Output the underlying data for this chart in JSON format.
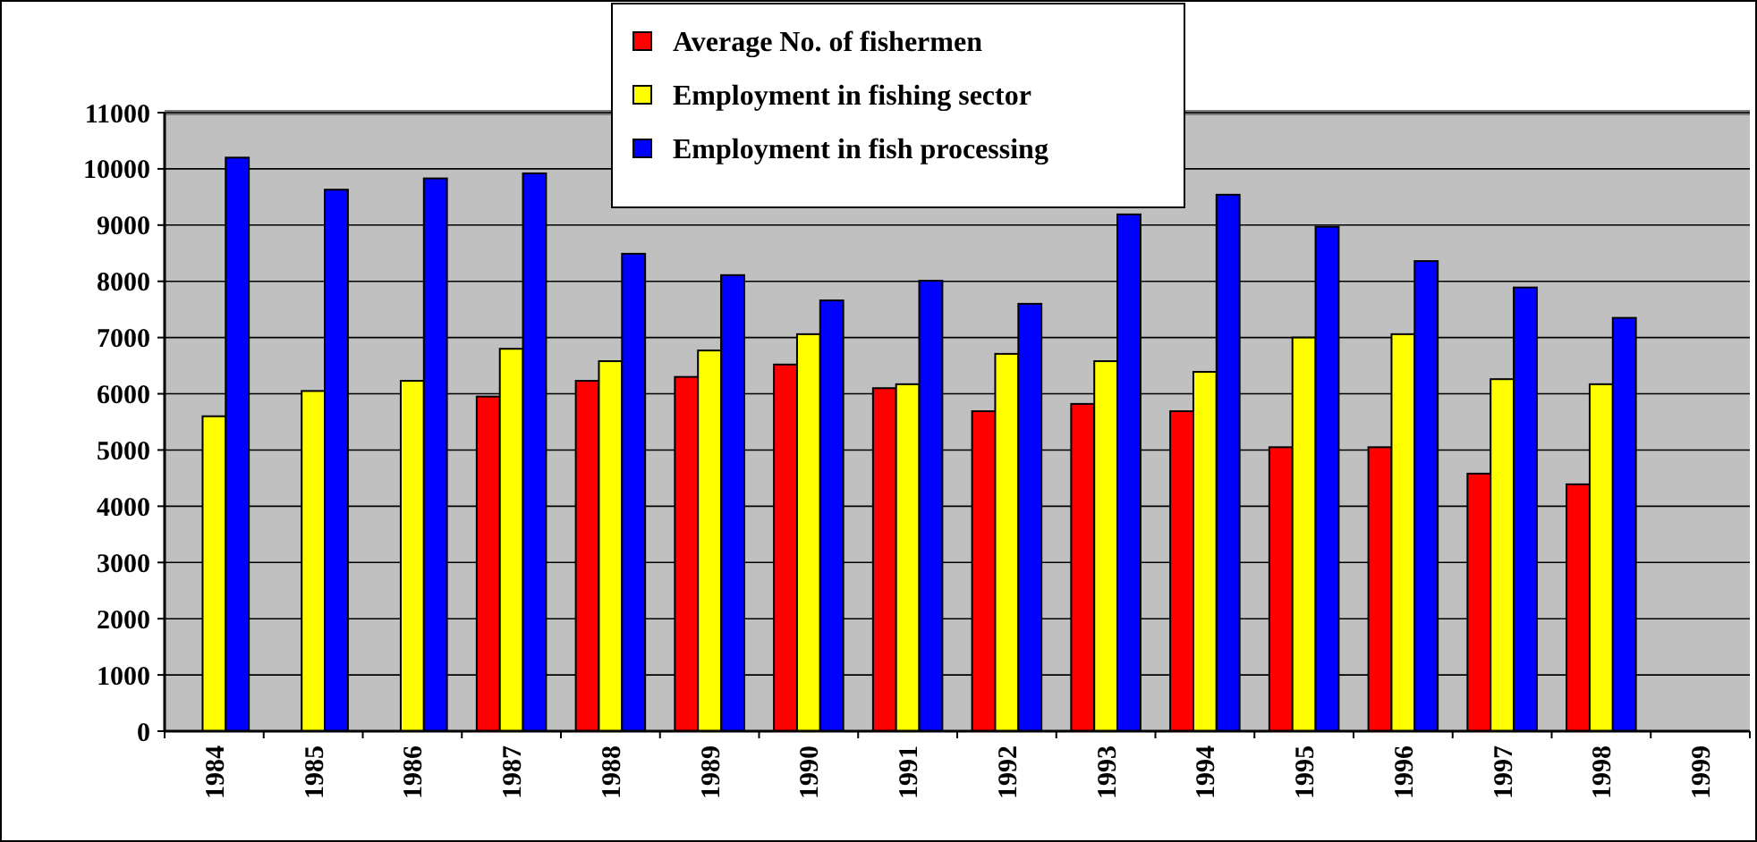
{
  "chart_data": {
    "type": "bar",
    "categories": [
      "1984",
      "1985",
      "1986",
      "1987",
      "1988",
      "1989",
      "1990",
      "1991",
      "1992",
      "1993",
      "1994",
      "1995",
      "1996",
      "1997",
      "1998",
      "1999"
    ],
    "series": [
      {
        "name": "Average No. of fishermen",
        "color": "#ff0000",
        "values": [
          null,
          null,
          null,
          5950,
          6230,
          6300,
          6520,
          6100,
          5690,
          5820,
          5690,
          5050,
          5050,
          4580,
          4390,
          null
        ]
      },
      {
        "name": "Employment in fishing sector",
        "color": "#ffff00",
        "values": [
          5600,
          6050,
          6230,
          6800,
          6580,
          6770,
          7060,
          6170,
          6710,
          6580,
          6390,
          7000,
          7060,
          6260,
          6170,
          null
        ]
      },
      {
        "name": "Employment in fish processing",
        "color": "#0000ff",
        "values": [
          10200,
          9630,
          9830,
          9920,
          8490,
          8110,
          7660,
          8010,
          7600,
          9190,
          9540,
          8970,
          8360,
          7890,
          7350,
          null
        ]
      }
    ],
    "ylim": [
      0,
      11000
    ],
    "yticks": [
      0,
      1000,
      2000,
      3000,
      4000,
      5000,
      6000,
      7000,
      8000,
      9000,
      10000,
      11000
    ],
    "grid": "y",
    "legend": "top"
  }
}
